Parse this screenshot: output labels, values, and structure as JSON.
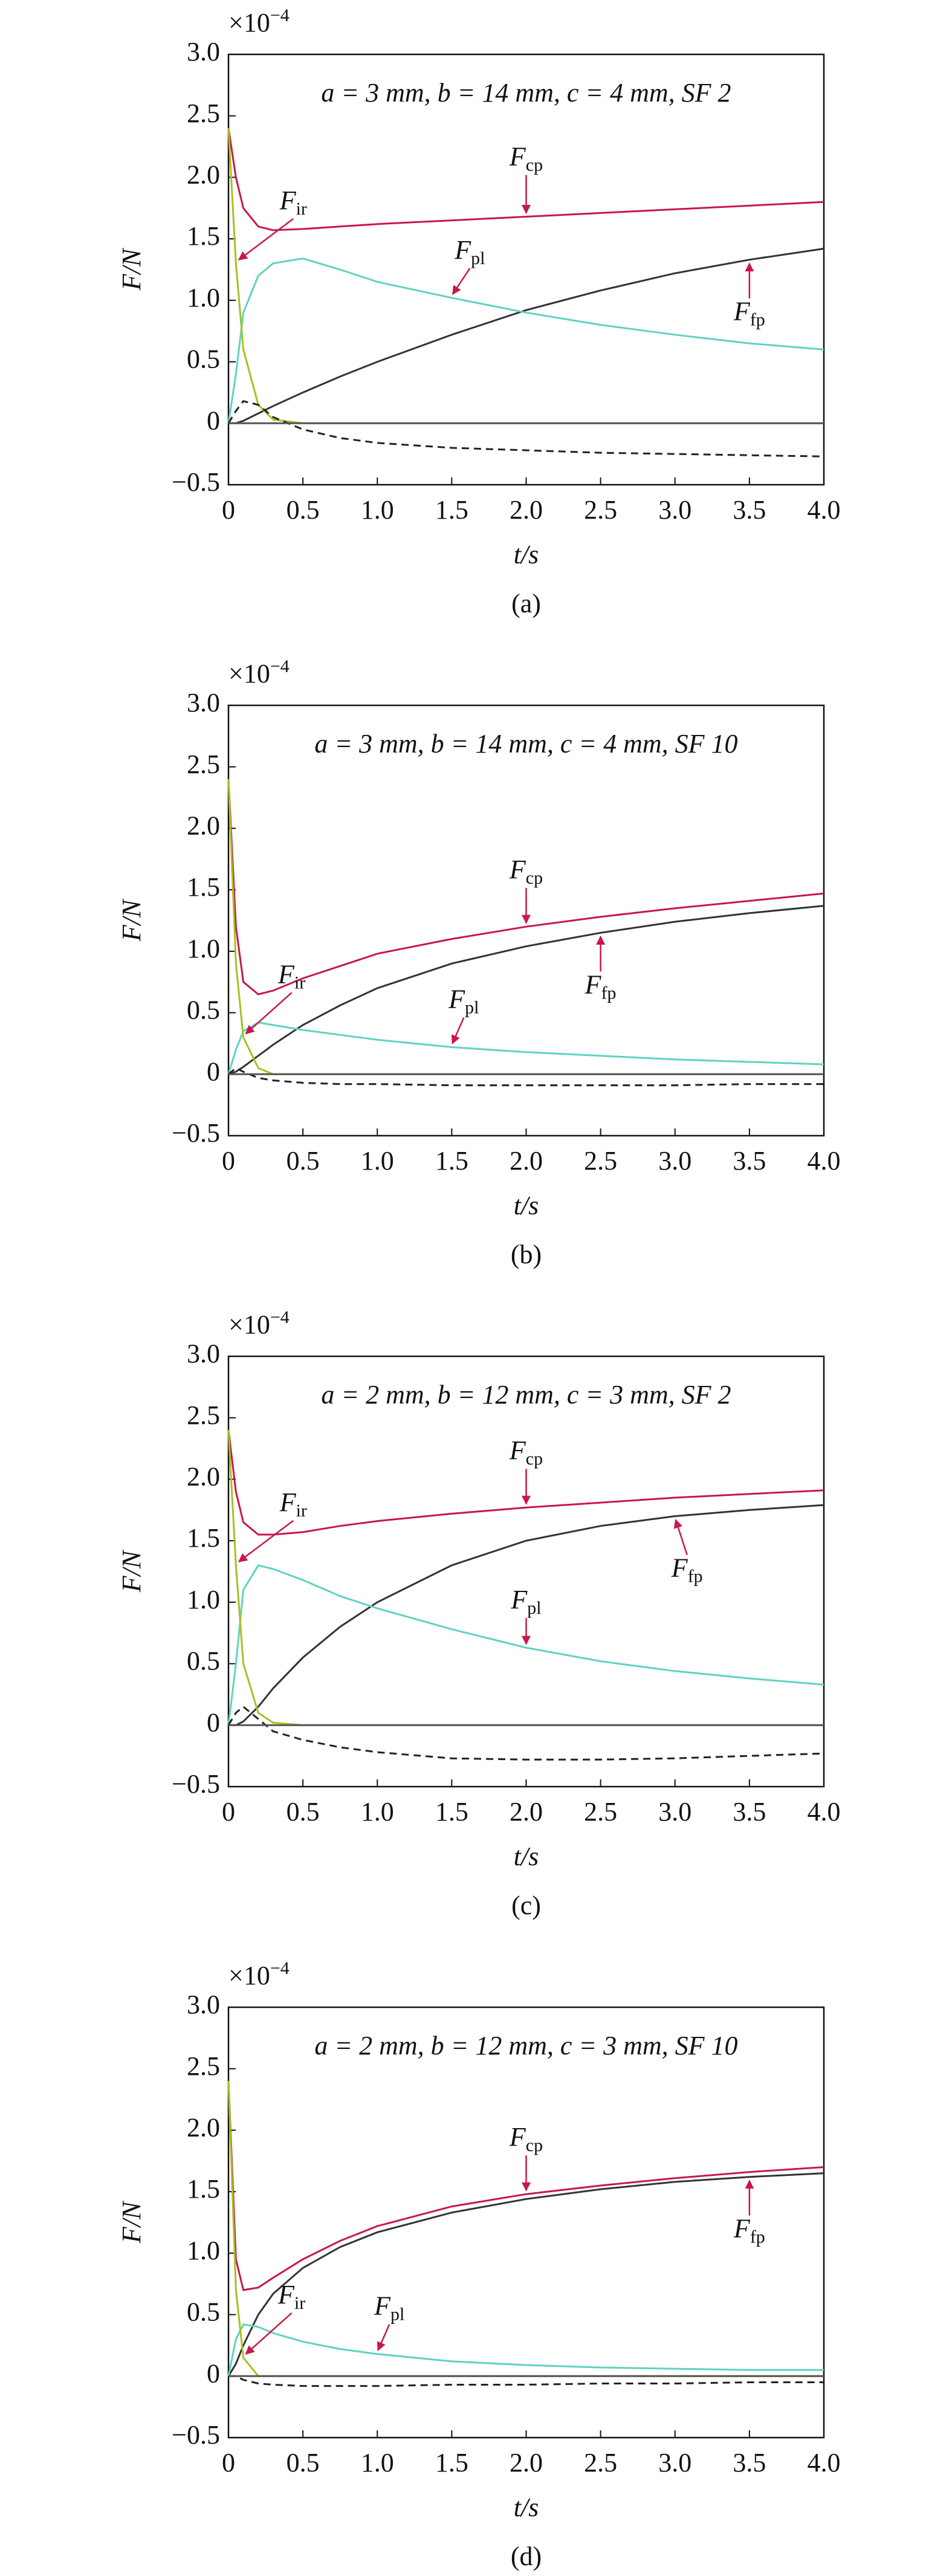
{
  "chart_data": [
    {
      "type": "line",
      "title": "a = 3 mm, b = 14 mm, c = 4 mm, SF 2",
      "caption": "(a)",
      "xlabel": "t/s",
      "ylabel": "F/N",
      "y_multiplier": "×10",
      "y_multiplier_exp": "−4",
      "x": [
        0,
        0.05,
        0.1,
        0.2,
        0.3,
        0.5,
        0.75,
        1,
        1.5,
        2,
        2.5,
        3,
        3.5,
        4
      ],
      "xlim": [
        0,
        4
      ],
      "ylim": [
        -0.5,
        3
      ],
      "xticks": [
        0,
        0.5,
        {
          "value": 1,
          "label": "1.0"
        },
        1.5,
        {
          "value": 2,
          "label": "2.0"
        },
        2.5,
        {
          "value": 3,
          "label": "3.0"
        },
        3.5,
        {
          "value": 4,
          "label": "4.0"
        }
      ],
      "yticks": [
        {
          "value": -0.5,
          "label": "−0.5"
        },
        0,
        0.5,
        {
          "value": 1,
          "label": "1.0"
        },
        1.5,
        {
          "value": 2,
          "label": "2.0"
        },
        2.5,
        {
          "value": 3,
          "label": "3.0"
        }
      ],
      "series": [
        {
          "name": "F",
          "sub": "cp",
          "color": "#c8174a",
          "values": [
            2.4,
            2.0,
            1.75,
            1.6,
            1.57,
            1.58,
            1.6,
            1.62,
            1.65,
            1.68,
            1.71,
            1.74,
            1.77,
            1.8
          ]
        },
        {
          "name": "F",
          "sub": "fp",
          "color": "#333333",
          "values": [
            0,
            0,
            0.02,
            0.08,
            0.14,
            0.25,
            0.38,
            0.5,
            0.72,
            0.92,
            1.08,
            1.22,
            1.33,
            1.42
          ]
        },
        {
          "name": "F",
          "sub": "pl",
          "color": "#5fd3c0",
          "values": [
            0,
            0.4,
            0.9,
            1.2,
            1.3,
            1.34,
            1.25,
            1.15,
            1.02,
            0.9,
            0.8,
            0.72,
            0.65,
            0.6
          ]
        },
        {
          "name": "F",
          "sub": "ir",
          "color": "#a8c020",
          "values": [
            2.4,
            1.3,
            0.6,
            0.15,
            0.03,
            0,
            0,
            0,
            0,
            0,
            0,
            0,
            0,
            0
          ]
        },
        {
          "color": "#222222",
          "dash": true,
          "values": [
            0,
            0.1,
            0.18,
            0.15,
            0.05,
            -0.05,
            -0.12,
            -0.16,
            -0.2,
            -0.22,
            -0.24,
            -0.25,
            -0.26,
            -0.27
          ]
        },
        {
          "color": "#555555",
          "values": [
            0,
            0,
            0,
            0,
            0,
            0,
            0,
            0,
            0,
            0,
            0,
            0,
            0,
            0
          ]
        }
      ]
    },
    {
      "type": "line",
      "title": "a = 3 mm, b = 14 mm, c = 4 mm, SF 10",
      "caption": "(b)",
      "xlabel": "t/s",
      "ylabel": "F/N",
      "y_multiplier": "×10",
      "y_multiplier_exp": "−4",
      "x": [
        0,
        0.05,
        0.1,
        0.2,
        0.3,
        0.5,
        0.75,
        1,
        1.5,
        2,
        2.5,
        3,
        3.5,
        4
      ],
      "xlim": [
        0,
        4
      ],
      "ylim": [
        -0.5,
        3
      ],
      "xticks": [
        0,
        0.5,
        {
          "value": 1,
          "label": "1.0"
        },
        1.5,
        {
          "value": 2,
          "label": "2.0"
        },
        2.5,
        {
          "value": 3,
          "label": "3.0"
        },
        3.5,
        {
          "value": 4,
          "label": "4.0"
        }
      ],
      "yticks": [
        {
          "value": -0.5,
          "label": "−0.5"
        },
        0,
        0.5,
        {
          "value": 1,
          "label": "1.0"
        },
        1.5,
        {
          "value": 2,
          "label": "2.0"
        },
        2.5,
        {
          "value": 3,
          "label": "3.0"
        }
      ],
      "series": [
        {
          "name": "F",
          "sub": "cp",
          "color": "#c8174a",
          "values": [
            2.4,
            1.2,
            0.75,
            0.65,
            0.68,
            0.78,
            0.88,
            0.98,
            1.1,
            1.2,
            1.28,
            1.35,
            1.41,
            1.47
          ]
        },
        {
          "name": "F",
          "sub": "fp",
          "color": "#333333",
          "values": [
            0,
            0.02,
            0.06,
            0.15,
            0.24,
            0.4,
            0.56,
            0.7,
            0.9,
            1.04,
            1.15,
            1.24,
            1.31,
            1.37
          ]
        },
        {
          "name": "F",
          "sub": "pl",
          "color": "#5fd3c0",
          "values": [
            0,
            0.2,
            0.35,
            0.42,
            0.4,
            0.36,
            0.32,
            0.28,
            0.22,
            0.18,
            0.15,
            0.12,
            0.1,
            0.08
          ]
        },
        {
          "name": "F",
          "sub": "ir",
          "color": "#a8c020",
          "values": [
            2.4,
            0.9,
            0.3,
            0.05,
            0,
            0,
            0,
            0,
            0,
            0,
            0,
            0,
            0,
            0
          ]
        },
        {
          "color": "#222222",
          "dash": true,
          "values": [
            0,
            0.05,
            0.02,
            -0.03,
            -0.05,
            -0.07,
            -0.08,
            -0.08,
            -0.09,
            -0.09,
            -0.09,
            -0.09,
            -0.08,
            -0.08
          ]
        },
        {
          "color": "#555555",
          "values": [
            0,
            0,
            0,
            0,
            0,
            0,
            0,
            0,
            0,
            0,
            0,
            0,
            0,
            0
          ]
        }
      ]
    },
    {
      "type": "line",
      "title": "a = 2 mm, b = 12 mm, c = 3 mm, SF 2",
      "caption": "(c)",
      "xlabel": "t/s",
      "ylabel": "F/N",
      "y_multiplier": "×10",
      "y_multiplier_exp": "−4",
      "x": [
        0,
        0.05,
        0.1,
        0.2,
        0.3,
        0.5,
        0.75,
        1,
        1.5,
        2,
        2.5,
        3,
        3.5,
        4
      ],
      "xlim": [
        0,
        4
      ],
      "ylim": [
        -0.5,
        3
      ],
      "xticks": [
        0,
        0.5,
        {
          "value": 1,
          "label": "1.0"
        },
        1.5,
        {
          "value": 2,
          "label": "2.0"
        },
        2.5,
        {
          "value": 3,
          "label": "3.0"
        },
        3.5,
        {
          "value": 4,
          "label": "4.0"
        }
      ],
      "yticks": [
        {
          "value": -0.5,
          "label": "−0.5"
        },
        0,
        0.5,
        {
          "value": 1,
          "label": "1.0"
        },
        1.5,
        {
          "value": 2,
          "label": "2.0"
        },
        2.5,
        {
          "value": 3,
          "label": "3.0"
        }
      ],
      "series": [
        {
          "name": "F",
          "sub": "cp",
          "color": "#c8174a",
          "values": [
            2.4,
            1.9,
            1.65,
            1.55,
            1.55,
            1.57,
            1.62,
            1.66,
            1.72,
            1.77,
            1.81,
            1.85,
            1.88,
            1.91
          ]
        },
        {
          "name": "F",
          "sub": "fp",
          "color": "#333333",
          "values": [
            0,
            0,
            0.03,
            0.15,
            0.3,
            0.55,
            0.8,
            1.0,
            1.3,
            1.5,
            1.62,
            1.7,
            1.75,
            1.79
          ]
        },
        {
          "name": "F",
          "sub": "pl",
          "color": "#5fd3c0",
          "values": [
            0,
            0.5,
            1.1,
            1.3,
            1.27,
            1.18,
            1.05,
            0.95,
            0.78,
            0.63,
            0.52,
            0.44,
            0.38,
            0.33
          ]
        },
        {
          "name": "F",
          "sub": "ir",
          "color": "#a8c020",
          "values": [
            2.4,
            1.3,
            0.5,
            0.1,
            0.02,
            0,
            0,
            0,
            0,
            0,
            0,
            0,
            0,
            0
          ]
        },
        {
          "color": "#222222",
          "dash": true,
          "values": [
            0,
            0.1,
            0.15,
            0.05,
            -0.05,
            -0.12,
            -0.18,
            -0.22,
            -0.27,
            -0.28,
            -0.28,
            -0.27,
            -0.25,
            -0.23
          ]
        },
        {
          "color": "#555555",
          "values": [
            0,
            0,
            0,
            0,
            0,
            0,
            0,
            0,
            0,
            0,
            0,
            0,
            0,
            0
          ]
        }
      ]
    },
    {
      "type": "line",
      "title": "a = 2 mm, b = 12 mm, c = 3 mm, SF 10",
      "caption": "(d)",
      "xlabel": "t/s",
      "ylabel": "F/N",
      "y_multiplier": "×10",
      "y_multiplier_exp": "−4",
      "x": [
        0,
        0.05,
        0.1,
        0.2,
        0.3,
        0.5,
        0.75,
        1,
        1.5,
        2,
        2.5,
        3,
        3.5,
        4
      ],
      "xlim": [
        0,
        4
      ],
      "ylim": [
        -0.5,
        3
      ],
      "xticks": [
        0,
        0.5,
        {
          "value": 1,
          "label": "1.0"
        },
        1.5,
        {
          "value": 2,
          "label": "2.0"
        },
        2.5,
        {
          "value": 3,
          "label": "3.0"
        },
        3.5,
        {
          "value": 4,
          "label": "4.0"
        }
      ],
      "yticks": [
        {
          "value": -0.5,
          "label": "−0.5"
        },
        0,
        0.5,
        {
          "value": 1,
          "label": "1.0"
        },
        1.5,
        {
          "value": 2,
          "label": "2.0"
        },
        2.5,
        {
          "value": 3,
          "label": "3.0"
        }
      ],
      "series": [
        {
          "name": "F",
          "sub": "cp",
          "color": "#c8174a",
          "values": [
            2.4,
            0.95,
            0.7,
            0.72,
            0.8,
            0.95,
            1.1,
            1.22,
            1.38,
            1.48,
            1.55,
            1.61,
            1.66,
            1.7
          ]
        },
        {
          "name": "F",
          "sub": "fp",
          "color": "#333333",
          "values": [
            0,
            0.1,
            0.25,
            0.5,
            0.67,
            0.88,
            1.05,
            1.17,
            1.33,
            1.44,
            1.52,
            1.58,
            1.62,
            1.65
          ]
        },
        {
          "name": "F",
          "sub": "pl",
          "color": "#5fd3c0",
          "values": [
            0,
            0.3,
            0.42,
            0.4,
            0.35,
            0.28,
            0.22,
            0.18,
            0.12,
            0.09,
            0.07,
            0.06,
            0.05,
            0.05
          ]
        },
        {
          "name": "F",
          "sub": "ir",
          "color": "#a8c020",
          "values": [
            2.4,
            0.7,
            0.15,
            0,
            0,
            0,
            0,
            0,
            0,
            0,
            0,
            0,
            0,
            0
          ]
        },
        {
          "color": "#222222",
          "dash": true,
          "values": [
            0,
            0,
            -0.03,
            -0.06,
            -0.07,
            -0.08,
            -0.08,
            -0.08,
            -0.07,
            -0.07,
            -0.06,
            -0.06,
            -0.05,
            -0.05
          ]
        },
        {
          "color": "#555555",
          "values": [
            0,
            0,
            0,
            0,
            0,
            0,
            0,
            0,
            0,
            0,
            0,
            0,
            0,
            0
          ]
        }
      ]
    }
  ]
}
